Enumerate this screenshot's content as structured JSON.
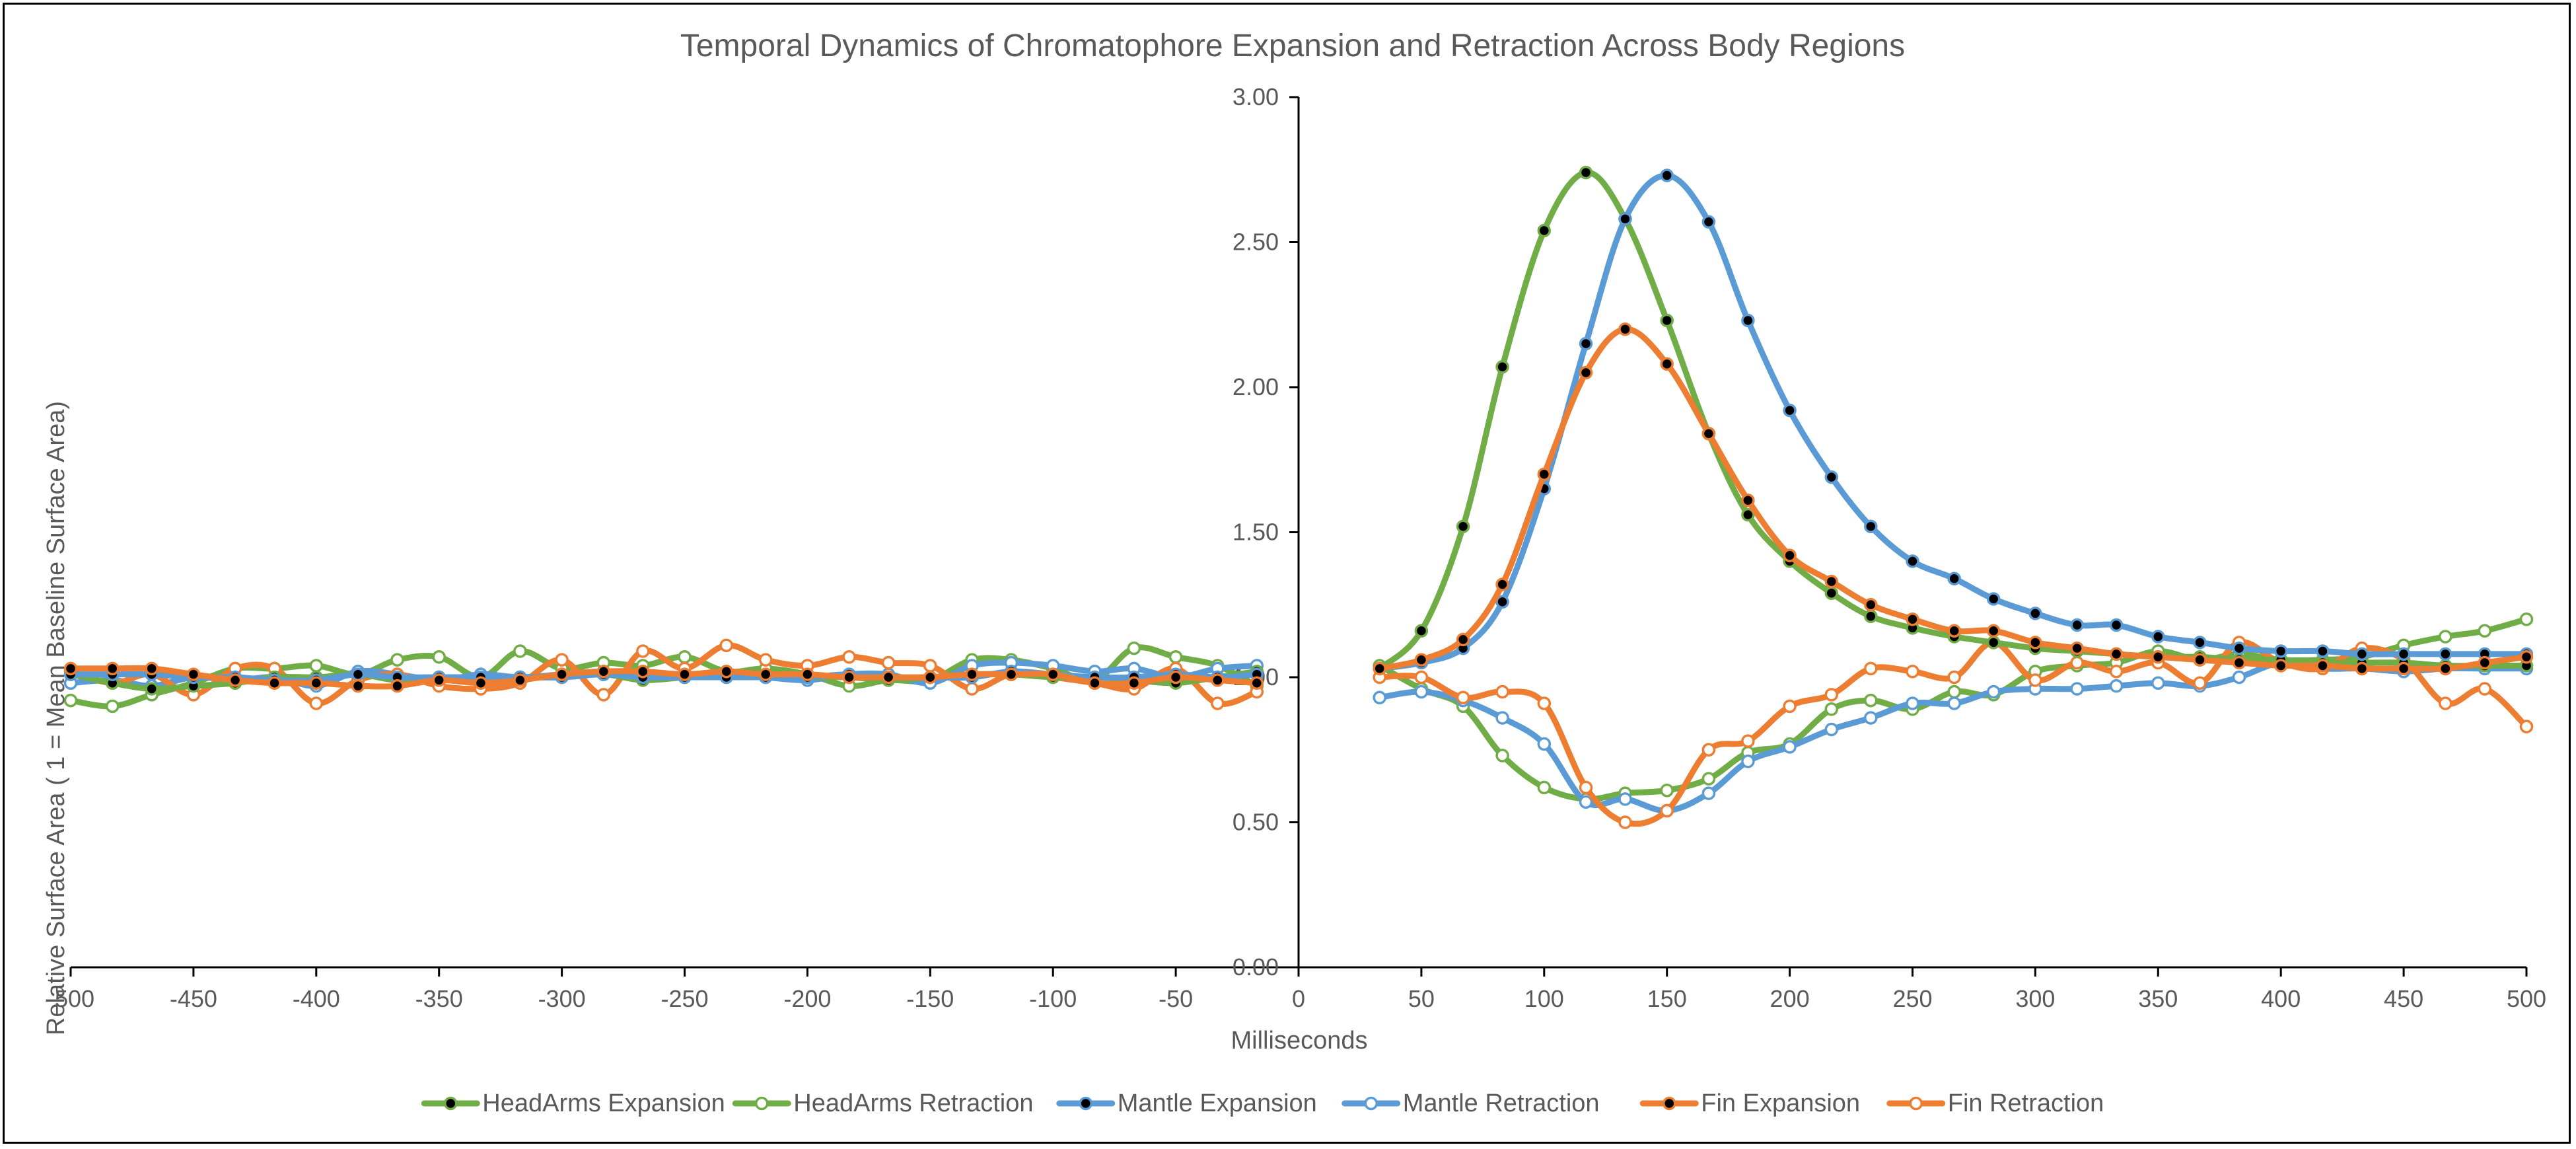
{
  "chart_data": {
    "type": "line",
    "title": "Temporal Dynamics of Chromatophore Expansion and Retraction Across Body Regions",
    "xlabel": "Milliseconds",
    "ylabel": "Relative Surface Area ( 1 = Mean Baseline Surface Area)",
    "xlim": [
      -500,
      500
    ],
    "ylim": [
      0,
      3
    ],
    "x_ticks": [
      "-500",
      "-450",
      "-400",
      "-350",
      "-300",
      "-250",
      "-200",
      "-150",
      "-100",
      "-50",
      "0",
      "50",
      "100",
      "150",
      "200",
      "250",
      "300",
      "350",
      "400",
      "450",
      "500"
    ],
    "y_ticks": [
      "0.00",
      "0.50",
      "1.00",
      "1.50",
      "2.00",
      "2.50",
      "3.00"
    ],
    "legend_position": "bottom",
    "x": [
      -500,
      -483,
      -467,
      -450,
      -433,
      -417,
      -400,
      -383,
      -367,
      -350,
      -333,
      -317,
      -300,
      -283,
      -267,
      -250,
      -233,
      -217,
      -200,
      -183,
      -167,
      -150,
      -133,
      -117,
      -100,
      -83,
      -67,
      -50,
      -33,
      -17,
      33,
      50,
      67,
      83,
      100,
      117,
      133,
      150,
      167,
      183,
      200,
      217,
      233,
      250,
      267,
      283,
      300,
      317,
      333,
      350,
      367,
      383,
      400,
      417,
      433,
      450,
      467,
      483,
      500
    ],
    "series": [
      {
        "name": "HeadArms Expansion",
        "color": "#70ad47",
        "marker_fill": "#000000",
        "values": [
          1.01,
          0.98,
          0.96,
          0.97,
          0.98,
          1.0,
          1.0,
          1.01,
          0.99,
          1.0,
          0.99,
          1.0,
          1.0,
          1.01,
          0.99,
          1.0,
          1.01,
          1.01,
          1.0,
          1.0,
          0.99,
          1.0,
          1.01,
          1.01,
          1.0,
          1.0,
          0.99,
          0.98,
          1.0,
          1.02,
          1.03,
          1.16,
          1.52,
          2.07,
          2.54,
          2.74,
          2.58,
          2.23,
          1.84,
          1.56,
          1.4,
          1.29,
          1.21,
          1.17,
          1.14,
          1.12,
          1.1,
          1.09,
          1.08,
          1.07,
          1.07,
          1.06,
          1.06,
          1.05,
          1.05,
          1.05,
          1.04,
          1.04,
          1.04
        ]
      },
      {
        "name": "HeadArms Retraction",
        "color": "#70ad47",
        "marker_fill": "#ffffff",
        "values": [
          0.92,
          0.9,
          0.94,
          0.98,
          1.03,
          1.03,
          1.04,
          1.01,
          1.06,
          1.07,
          1.0,
          1.09,
          1.03,
          1.05,
          1.04,
          1.07,
          1.02,
          1.03,
          1.01,
          0.97,
          0.99,
          0.99,
          1.06,
          1.06,
          1.03,
          0.99,
          1.1,
          1.07,
          1.04,
          0.97,
          1.04,
          0.96,
          0.9,
          0.73,
          0.62,
          0.58,
          0.6,
          0.61,
          0.65,
          0.74,
          0.77,
          0.89,
          0.92,
          0.89,
          0.95,
          0.94,
          1.02,
          1.04,
          1.05,
          1.09,
          1.06,
          1.08,
          1.06,
          1.06,
          1.07,
          1.11,
          1.14,
          1.16,
          1.2
        ]
      },
      {
        "name": "Mantle Expansion",
        "color": "#5b9bd5",
        "marker_fill": "#000000",
        "values": [
          1.01,
          1.01,
          1.01,
          1.0,
          1.0,
          0.99,
          0.99,
          1.01,
          1.0,
          1.0,
          1.0,
          1.0,
          1.0,
          1.01,
          1.0,
          1.0,
          1.0,
          1.0,
          1.0,
          1.01,
          1.0,
          1.0,
          1.0,
          1.02,
          1.01,
          1.0,
          1.0,
          1.01,
          1.0,
          1.01,
          1.03,
          1.05,
          1.1,
          1.26,
          1.65,
          2.15,
          2.58,
          2.73,
          2.57,
          2.23,
          1.92,
          1.69,
          1.52,
          1.4,
          1.34,
          1.27,
          1.22,
          1.18,
          1.18,
          1.14,
          1.12,
          1.1,
          1.09,
          1.09,
          1.08,
          1.08,
          1.08,
          1.08,
          1.08
        ]
      },
      {
        "name": "Mantle Retraction",
        "color": "#5b9bd5",
        "marker_fill": "#ffffff",
        "values": [
          0.98,
          0.99,
          0.97,
          1.0,
          0.99,
          1.0,
          0.97,
          1.02,
          1.01,
          0.99,
          1.01,
          1.0,
          1.01,
          1.02,
          1.01,
          1.01,
          1.01,
          1.0,
          0.99,
          1.01,
          1.01,
          0.98,
          1.04,
          1.05,
          1.04,
          1.02,
          1.03,
          1.0,
          1.03,
          1.04,
          0.93,
          0.95,
          0.92,
          0.86,
          0.77,
          0.57,
          0.58,
          0.54,
          0.6,
          0.71,
          0.76,
          0.82,
          0.86,
          0.91,
          0.91,
          0.95,
          0.96,
          0.96,
          0.97,
          0.98,
          0.97,
          1.0,
          1.05,
          1.03,
          1.03,
          1.02,
          1.03,
          1.03,
          1.03
        ]
      },
      {
        "name": "Fin Expansion",
        "color": "#ed7d31",
        "marker_fill": "#000000",
        "values": [
          1.03,
          1.03,
          1.03,
          1.01,
          0.99,
          0.98,
          0.98,
          0.97,
          0.97,
          0.99,
          0.98,
          0.99,
          1.01,
          1.02,
          1.02,
          1.01,
          1.02,
          1.01,
          1.01,
          1.0,
          1.0,
          1.0,
          1.01,
          1.01,
          1.01,
          0.98,
          0.98,
          1.0,
          0.99,
          0.98,
          1.03,
          1.06,
          1.13,
          1.32,
          1.7,
          2.05,
          2.2,
          2.08,
          1.84,
          1.61,
          1.42,
          1.33,
          1.25,
          1.2,
          1.16,
          1.16,
          1.12,
          1.1,
          1.08,
          1.07,
          1.06,
          1.05,
          1.04,
          1.04,
          1.03,
          1.03,
          1.03,
          1.05,
          1.07
        ]
      },
      {
        "name": "Fin Retraction",
        "color": "#ed7d31",
        "marker_fill": "#ffffff",
        "values": [
          1.02,
          0.98,
          1.01,
          0.94,
          1.03,
          1.03,
          0.91,
          0.99,
          1.01,
          0.97,
          0.96,
          0.98,
          1.06,
          0.94,
          1.09,
          1.03,
          1.11,
          1.06,
          1.04,
          1.07,
          1.05,
          1.04,
          0.96,
          1.01,
          1.0,
          0.98,
          0.96,
          1.03,
          0.91,
          0.95,
          1.0,
          1.0,
          0.93,
          0.95,
          0.91,
          0.62,
          0.5,
          0.54,
          0.75,
          0.78,
          0.9,
          0.94,
          1.03,
          1.02,
          1.0,
          1.12,
          0.99,
          1.05,
          1.02,
          1.05,
          0.98,
          1.12,
          1.05,
          1.03,
          1.1,
          1.06,
          0.91,
          0.96,
          0.83
        ]
      }
    ]
  }
}
